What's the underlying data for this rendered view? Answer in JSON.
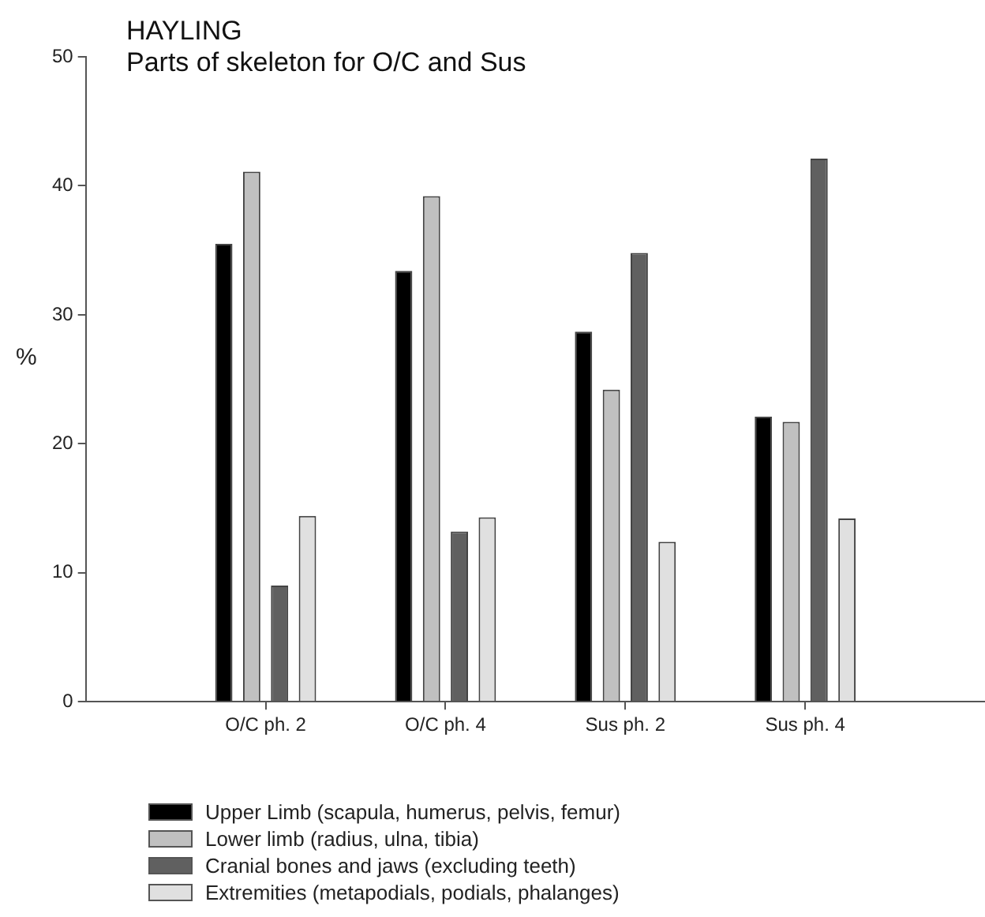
{
  "chart_data": {
    "type": "bar",
    "title": "HAYLING",
    "subtitle": "Parts of skeleton for O/C and Sus",
    "ylabel": "%",
    "categories": [
      "O/C ph. 2",
      "O/C ph. 4",
      "Sus ph. 2",
      "Sus ph. 4"
    ],
    "series": [
      {
        "name": "Upper Limb (scapula, humerus, pelvis, femur)",
        "color": "#000000",
        "values": [
          35.5,
          33.4,
          28.7,
          22.1
        ]
      },
      {
        "name": "Lower limb (radius, ulna, tibia)",
        "color": "#c0c0c0",
        "values": [
          41.1,
          39.2,
          24.2,
          21.7
        ]
      },
      {
        "name": "Cranial bones and jaws (excluding teeth)",
        "color": "#606060",
        "values": [
          9.0,
          13.2,
          34.8,
          42.1
        ]
      },
      {
        "name": "Extremities (metapodials, podials, phalanges)",
        "color": "#e0e0e0",
        "values": [
          14.4,
          14.3,
          12.4,
          14.2
        ]
      }
    ],
    "ylim": [
      0,
      50
    ],
    "yticks": [
      0,
      10,
      20,
      30,
      40,
      50
    ],
    "grid": false,
    "legend": "bottom"
  }
}
